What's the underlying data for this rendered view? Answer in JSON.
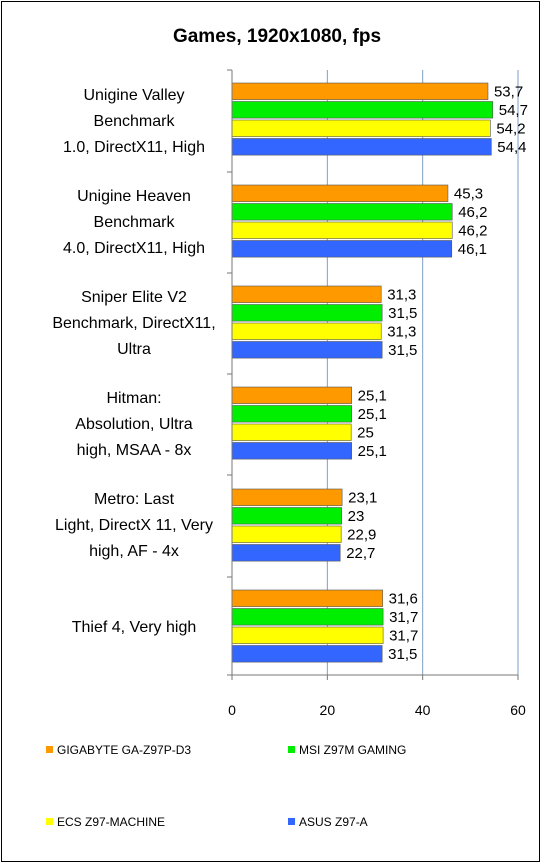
{
  "chart_data": {
    "type": "bar",
    "orientation": "horizontal",
    "title": "Games, 1920x1080, fps",
    "categories": [
      [
        "Unigine Valley",
        "Benchmark",
        "1.0, DirectX11, High"
      ],
      [
        "Unigine Heaven",
        "Benchmark",
        "4.0, DirectX11, High"
      ],
      [
        "Sniper Elite V2",
        "Benchmark, DirectX11,",
        "Ultra"
      ],
      [
        "Hitman:",
        "Absolution, Ultra",
        "high, MSAA - 8x"
      ],
      [
        "Metro: Last",
        "Light, DirectX 11, Very",
        "high, AF - 4x"
      ],
      [
        "Thief 4, Very high"
      ]
    ],
    "series": [
      {
        "name": "GIGABYTE GA-Z97P-D3",
        "color": "#FF9900",
        "values": [
          53.7,
          45.3,
          31.3,
          25.1,
          23.1,
          31.6
        ],
        "labels": [
          "53,7",
          "45,3",
          "31,3",
          "25,1",
          "23,1",
          "31,6"
        ]
      },
      {
        "name": "MSI Z97M GAMING",
        "color": "#00EE00",
        "values": [
          54.7,
          46.2,
          31.5,
          25.1,
          23.0,
          31.7
        ],
        "labels": [
          "54,7",
          "46,2",
          "31,5",
          "25,1",
          "23",
          "31,7"
        ]
      },
      {
        "name": "ECS Z97-MACHINE",
        "color": "#FFFF00",
        "values": [
          54.2,
          46.2,
          31.3,
          25.0,
          22.9,
          31.7
        ],
        "labels": [
          "54,2",
          "46,2",
          "31,3",
          "25",
          "22,9",
          "31,7"
        ]
      },
      {
        "name": "ASUS Z97-A",
        "color": "#3366FF",
        "values": [
          54.4,
          46.1,
          31.5,
          25.1,
          22.7,
          31.5
        ],
        "labels": [
          "54,4",
          "46,1",
          "31,5",
          "25,1",
          "22,7",
          "31,5"
        ]
      }
    ],
    "xlim": [
      0,
      60
    ],
    "xticks": [
      "0",
      "20",
      "40",
      "60"
    ],
    "grid": "vertical",
    "legend_position": "bottom"
  }
}
